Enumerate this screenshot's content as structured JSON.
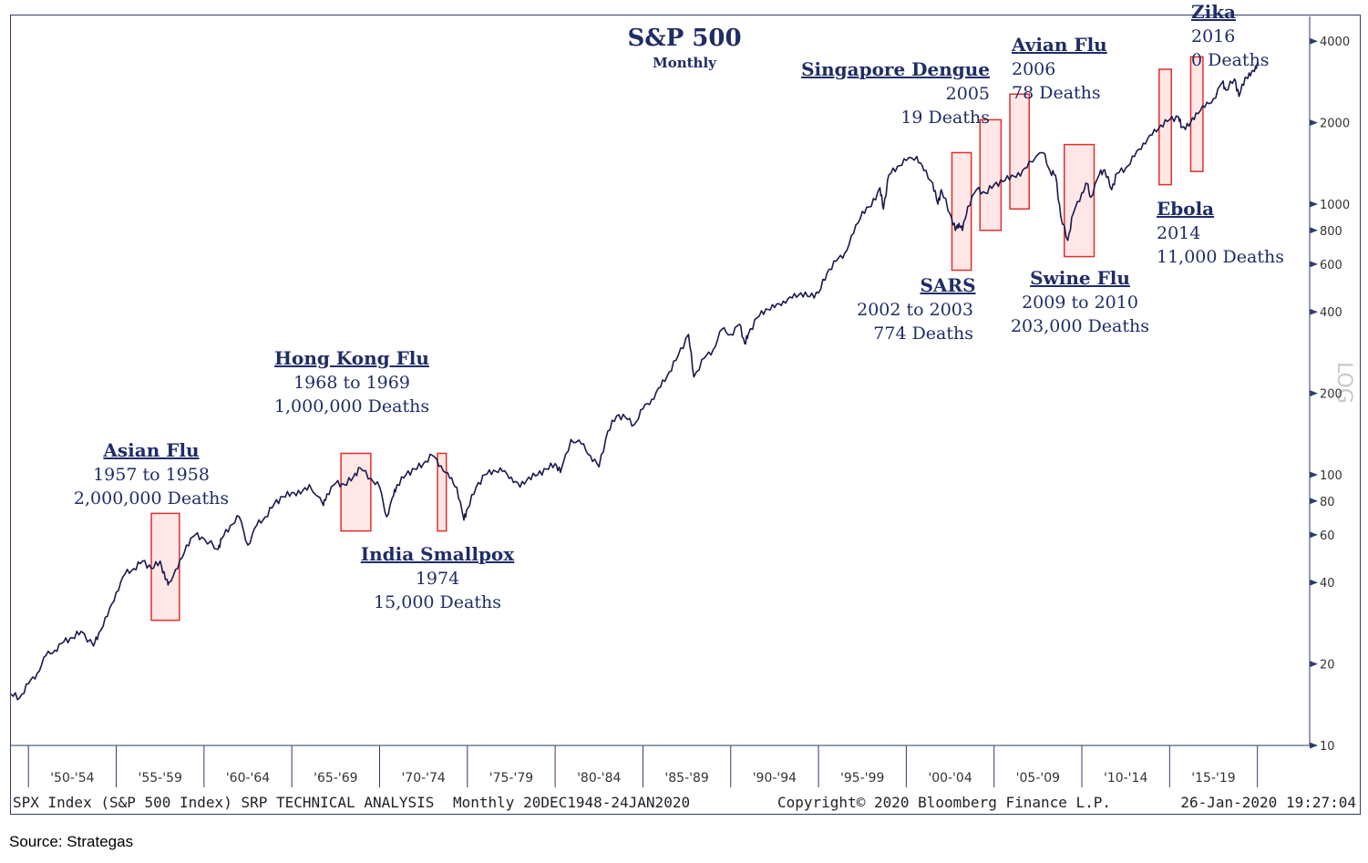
{
  "chart_data": {
    "type": "line",
    "title": "S&P 500",
    "subtitle": "Monthly",
    "y_scale": "log",
    "ylim": [
      10,
      4500
    ],
    "xlim": [
      1948.95,
      2020.07
    ],
    "y_ticks": [
      10,
      20,
      40,
      60,
      80,
      100,
      200,
      400,
      600,
      800,
      1000,
      2000,
      4000
    ],
    "y_axis_label": "LOG",
    "x_tick_labels": [
      "'50-'54",
      "'55-'59",
      "'60-'64",
      "'65-'69",
      "'70-'74",
      "'75-'79",
      "'80-'84",
      "'85-'89",
      "'90-'94",
      "'95-'99",
      "'00-'04",
      "'05-'09",
      "'10-'14",
      "'15-'19"
    ],
    "x_tick_starts": [
      1950,
      1955,
      1960,
      1965,
      1970,
      1975,
      1980,
      1985,
      1990,
      1995,
      2000,
      2005,
      2010,
      2015,
      2020
    ],
    "series": [
      {
        "color": "#1a1a4e",
        "points": [
          [
            1949.0,
            15.5
          ],
          [
            1949.5,
            15.0
          ],
          [
            1950.0,
            16.9
          ],
          [
            1950.5,
            18.5
          ],
          [
            1951.0,
            21.5
          ],
          [
            1951.5,
            22.5
          ],
          [
            1952.0,
            24.1
          ],
          [
            1952.5,
            25.0
          ],
          [
            1953.0,
            26.4
          ],
          [
            1953.7,
            23.3
          ],
          [
            1954.0,
            26.0
          ],
          [
            1954.5,
            30.0
          ],
          [
            1955.0,
            36.8
          ],
          [
            1955.5,
            43.0
          ],
          [
            1956.0,
            45.0
          ],
          [
            1956.5,
            48.0
          ],
          [
            1957.0,
            45.0
          ],
          [
            1957.5,
            48.0
          ],
          [
            1957.8,
            41.0
          ],
          [
            1958.0,
            40.0
          ],
          [
            1958.5,
            45.0
          ],
          [
            1959.0,
            55.0
          ],
          [
            1959.5,
            60.0
          ],
          [
            1960.0,
            58.0
          ],
          [
            1960.8,
            53.0
          ],
          [
            1961.0,
            58.0
          ],
          [
            1961.5,
            65.0
          ],
          [
            1962.0,
            70.0
          ],
          [
            1962.5,
            55.0
          ],
          [
            1963.0,
            65.0
          ],
          [
            1963.5,
            70.0
          ],
          [
            1964.0,
            78.0
          ],
          [
            1964.5,
            83.0
          ],
          [
            1965.0,
            86.0
          ],
          [
            1965.5,
            85.0
          ],
          [
            1966.0,
            92.0
          ],
          [
            1966.8,
            77.0
          ],
          [
            1967.0,
            85.0
          ],
          [
            1967.5,
            93.0
          ],
          [
            1968.0,
            92.0
          ],
          [
            1968.5,
            98.0
          ],
          [
            1968.9,
            106.0
          ],
          [
            1969.5,
            97.0
          ],
          [
            1970.0,
            90.0
          ],
          [
            1970.4,
            70.0
          ],
          [
            1970.8,
            84.0
          ],
          [
            1971.0,
            92.0
          ],
          [
            1971.5,
            100.0
          ],
          [
            1972.0,
            105.0
          ],
          [
            1972.5,
            110.0
          ],
          [
            1973.0,
            118.0
          ],
          [
            1973.5,
            108.0
          ],
          [
            1974.0,
            97.0
          ],
          [
            1974.4,
            90.0
          ],
          [
            1974.8,
            68.0
          ],
          [
            1975.0,
            75.0
          ],
          [
            1975.5,
            90.0
          ],
          [
            1976.0,
            100.0
          ],
          [
            1976.5,
            104.0
          ],
          [
            1977.0,
            103.0
          ],
          [
            1977.5,
            98.0
          ],
          [
            1978.0,
            90.0
          ],
          [
            1978.5,
            98.0
          ],
          [
            1979.0,
            100.0
          ],
          [
            1979.5,
            105.0
          ],
          [
            1980.0,
            110.0
          ],
          [
            1980.3,
            102.0
          ],
          [
            1980.9,
            135.0
          ],
          [
            1981.5,
            130.0
          ],
          [
            1982.0,
            118.0
          ],
          [
            1982.5,
            107.0
          ],
          [
            1983.0,
            145.0
          ],
          [
            1983.5,
            165.0
          ],
          [
            1984.0,
            163.0
          ],
          [
            1984.5,
            153.0
          ],
          [
            1985.0,
            175.0
          ],
          [
            1985.5,
            190.0
          ],
          [
            1986.0,
            211.0
          ],
          [
            1986.5,
            240.0
          ],
          [
            1987.0,
            275.0
          ],
          [
            1987.6,
            330.0
          ],
          [
            1987.9,
            230.0
          ],
          [
            1988.5,
            270.0
          ],
          [
            1989.0,
            290.0
          ],
          [
            1989.5,
            345.0
          ],
          [
            1990.0,
            330.0
          ],
          [
            1990.5,
            360.0
          ],
          [
            1990.8,
            305.0
          ],
          [
            1991.0,
            330.0
          ],
          [
            1991.5,
            380.0
          ],
          [
            1992.0,
            410.0
          ],
          [
            1992.5,
            415.0
          ],
          [
            1993.0,
            438.0
          ],
          [
            1993.5,
            450.0
          ],
          [
            1994.0,
            470.0
          ],
          [
            1994.5,
            455.0
          ],
          [
            1995.0,
            470.0
          ],
          [
            1995.5,
            560.0
          ],
          [
            1996.0,
            615.0
          ],
          [
            1996.5,
            660.0
          ],
          [
            1997.0,
            780.0
          ],
          [
            1997.5,
            940.0
          ],
          [
            1998.0,
            980.0
          ],
          [
            1998.5,
            1150.0
          ],
          [
            1998.7,
            960.0
          ],
          [
            1999.0,
            1280.0
          ],
          [
            1999.5,
            1380.0
          ],
          [
            2000.0,
            1450.0
          ],
          [
            2000.6,
            1500.0
          ],
          [
            2001.0,
            1330.0
          ],
          [
            2001.5,
            1200.0
          ],
          [
            2001.8,
            1000.0
          ],
          [
            2002.0,
            1130.0
          ],
          [
            2002.5,
            920.0
          ],
          [
            2002.8,
            800.0
          ],
          [
            2003.0,
            850.0
          ],
          [
            2003.2,
            800.0
          ],
          [
            2003.5,
            980.0
          ],
          [
            2004.0,
            1130.0
          ],
          [
            2004.5,
            1100.0
          ],
          [
            2005.0,
            1180.0
          ],
          [
            2005.5,
            1210.0
          ],
          [
            2006.0,
            1280.0
          ],
          [
            2006.5,
            1270.0
          ],
          [
            2007.0,
            1440.0
          ],
          [
            2007.8,
            1550.0
          ],
          [
            2008.2,
            1320.0
          ],
          [
            2008.5,
            1280.0
          ],
          [
            2008.8,
            900.0
          ],
          [
            2009.2,
            735.0
          ],
          [
            2009.5,
            920.0
          ],
          [
            2010.0,
            1100.0
          ],
          [
            2010.3,
            1190.0
          ],
          [
            2010.5,
            1060.0
          ],
          [
            2011.0,
            1290.0
          ],
          [
            2011.3,
            1340.0
          ],
          [
            2011.7,
            1130.0
          ],
          [
            2012.0,
            1300.0
          ],
          [
            2012.5,
            1360.0
          ],
          [
            2013.0,
            1500.0
          ],
          [
            2013.5,
            1680.0
          ],
          [
            2014.0,
            1800.0
          ],
          [
            2014.5,
            1960.0
          ],
          [
            2015.0,
            2050.0
          ],
          [
            2015.5,
            2100.0
          ],
          [
            2015.7,
            1920.0
          ],
          [
            2016.1,
            1940.0
          ],
          [
            2016.5,
            2170.0
          ],
          [
            2017.0,
            2280.0
          ],
          [
            2017.5,
            2450.0
          ],
          [
            2018.0,
            2820.0
          ],
          [
            2018.2,
            2640.0
          ],
          [
            2018.7,
            2900.0
          ],
          [
            2018.95,
            2500.0
          ],
          [
            2019.3,
            2940.0
          ],
          [
            2019.6,
            2980.0
          ],
          [
            2019.9,
            3230.0
          ],
          [
            2020.05,
            3295.0
          ]
        ]
      }
    ],
    "annotations": [
      {
        "title": "Asian Flu",
        "lines": [
          "1957 to 1958",
          "2,000,000 Deaths"
        ],
        "years": [
          1957.0,
          1958.6
        ],
        "range": [
          29,
          72
        ]
      },
      {
        "title": "Hong Kong Flu",
        "lines": [
          "1968 to 1969",
          "1,000,000 Deaths"
        ],
        "years": [
          1967.8,
          1969.5
        ],
        "range": [
          62,
          120
        ]
      },
      {
        "title": "India Smallpox",
        "lines": [
          "1974",
          "15,000 Deaths"
        ],
        "years": [
          1973.3,
          1973.8
        ],
        "range": [
          62,
          120
        ]
      },
      {
        "title": "SARS",
        "lines": [
          "2002 to 2003",
          "774 Deaths"
        ],
        "years": [
          2002.6,
          2003.7
        ],
        "range": [
          570,
          1550
        ]
      },
      {
        "title": "Singapore Dengue",
        "lines": [
          "2005",
          "19 Deaths"
        ],
        "years": [
          2004.2,
          2005.4
        ],
        "range": [
          800,
          2050
        ]
      },
      {
        "title": "Avian Flu",
        "lines": [
          "2006",
          "78 Deaths"
        ],
        "years": [
          2005.9,
          2007.0
        ],
        "range": [
          960,
          2550
        ]
      },
      {
        "title": "Swine Flu",
        "lines": [
          "2009 to 2010",
          "203,000 Deaths"
        ],
        "years": [
          2009.0,
          2010.7
        ],
        "range": [
          640,
          1660
        ]
      },
      {
        "title": "Ebola",
        "lines": [
          "2014",
          "11,000 Deaths"
        ],
        "years": [
          2014.4,
          2015.1
        ],
        "range": [
          1180,
          3150
        ]
      },
      {
        "title": "Zika",
        "lines": [
          "2016",
          "0 Deaths"
        ],
        "years": [
          2016.2,
          2016.9
        ],
        "range": [
          1320,
          3500
        ]
      }
    ]
  },
  "footer": {
    "left": "SPX Index (S&P 500 Index) SRP TECHNICAL ANALYSIS",
    "middle": "Monthly 20DEC1948-24JAN2020",
    "copyright": "Copyright© 2020 Bloomberg Finance L.P.",
    "timestamp": "26-Jan-2020 19:27:04"
  },
  "source": "Source: Strategas"
}
